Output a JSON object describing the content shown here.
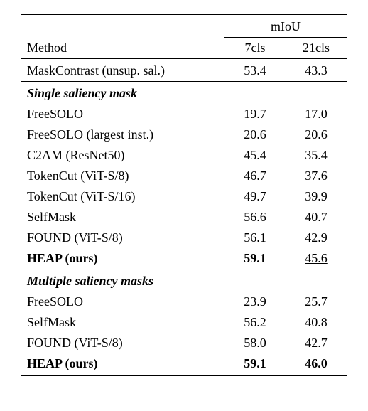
{
  "header": {
    "miou": "mIoU",
    "method": "Method",
    "col1": "7cls",
    "col2": "21cls"
  },
  "baseline": {
    "method": "MaskContrast (unsup. sal.)",
    "v1": "53.4",
    "v2": "43.3"
  },
  "section1": {
    "title": "Single saliency mask",
    "rows": [
      {
        "method": "FreeSOLO",
        "v1": "19.7",
        "v2": "17.0",
        "bold": false
      },
      {
        "method": "FreeSOLO (largest inst.)",
        "v1": "20.6",
        "v2": "20.6",
        "bold": false
      },
      {
        "method": "C2AM (ResNet50)",
        "v1": "45.4",
        "v2": "35.4",
        "bold": false
      },
      {
        "method": "TokenCut (ViT-S/8)",
        "v1": "46.7",
        "v2": "37.6",
        "bold": false
      },
      {
        "method": "TokenCut (ViT-S/16)",
        "v1": "49.7",
        "v2": "39.9",
        "bold": false
      },
      {
        "method": "SelfMask",
        "v1": "56.6",
        "v2": "40.7",
        "bold": false
      },
      {
        "method": "FOUND (ViT-S/8)",
        "v1": "56.1",
        "v2": "42.9",
        "bold": false
      },
      {
        "method": "HEAP (ours)",
        "v1": "59.1",
        "v2": "45.6",
        "bold": true,
        "v2_underline": true
      }
    ]
  },
  "section2": {
    "title": "Multiple saliency masks",
    "rows": [
      {
        "method": "FreeSOLO",
        "v1": "23.9",
        "v2": "25.7",
        "bold": false
      },
      {
        "method": "SelfMask",
        "v1": "56.2",
        "v2": "40.8",
        "bold": false
      },
      {
        "method": "FOUND (ViT-S/8)",
        "v1": "58.0",
        "v2": "42.7",
        "bold": false
      },
      {
        "method": "HEAP (ours)",
        "v1": "59.1",
        "v2": "46.0",
        "bold": true
      }
    ]
  }
}
